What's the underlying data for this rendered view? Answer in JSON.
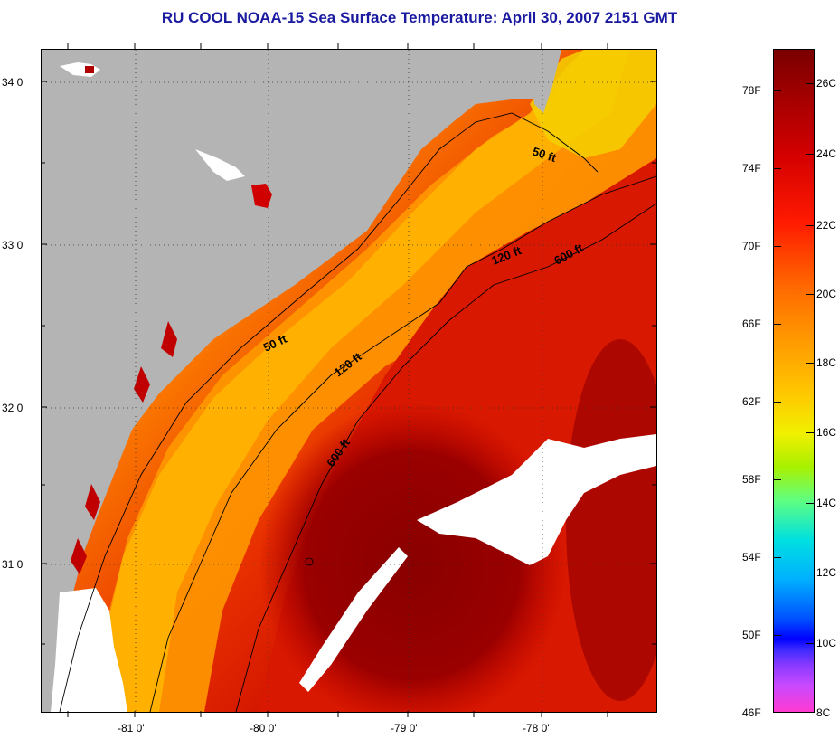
{
  "title": "RU COOL  NOAA-15  Sea Surface Temperature:  April 30, 2007 2151 GMT",
  "colors": {
    "title": "#1a1aa0",
    "land": "#b4b4b4",
    "cloud": "#ffffff"
  },
  "map": {
    "lat_labels": [
      "34 0'",
      "33 0'",
      "32 0'",
      "31 0'"
    ],
    "lon_labels": [
      "-81 0'",
      "-80 0'",
      "-79 0'",
      "-78 0'"
    ],
    "contour_labels": {
      "c50_north": "50 ft",
      "c50_south": "50 ft",
      "c120_north": "120 ft",
      "c120_south": "120 ft",
      "c600_north": "600 ft",
      "c600_south": "600 ft"
    }
  },
  "colorbar": {
    "fahrenheit": [
      "78F",
      "74F",
      "70F",
      "66F",
      "62F",
      "58F",
      "54F",
      "50F",
      "46F"
    ],
    "celsius": [
      "26C",
      "24C",
      "22C",
      "20C",
      "18C",
      "16C",
      "14C",
      "12C",
      "10C",
      "8C"
    ]
  }
}
